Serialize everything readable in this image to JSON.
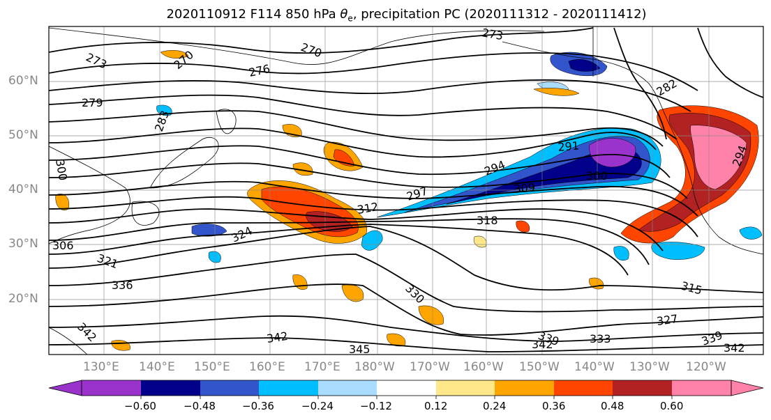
{
  "title": {
    "prefix": "2020110912 F114 850 hPa ",
    "symbol": "θ",
    "subscript": "e",
    "suffix": ", precipitation PC (2020111312 - 2020111412)"
  },
  "latitude_labels": [
    "60°N",
    "50°N",
    "40°N",
    "30°N",
    "20°N"
  ],
  "longitude_labels": [
    "130°E",
    "140°E",
    "150°E",
    "160°E",
    "170°E",
    "180°W",
    "170°W",
    "160°W",
    "150°W",
    "140°W",
    "130°W",
    "120°W"
  ],
  "contour_labels": [
    "273",
    "270",
    "276",
    "273",
    "279",
    "270",
    "283",
    "282",
    "291",
    "294",
    "294",
    "297",
    "309",
    "300",
    "300",
    "312",
    "318",
    "306",
    "321",
    "324",
    "336",
    "330",
    "315",
    "327",
    "342",
    "342",
    "339",
    "333",
    "342",
    "345",
    "339",
    "342"
  ],
  "colorbar": {
    "colors": [
      "#9933cc",
      "#00008b",
      "#3355cc",
      "#00bfff",
      "#aadcff",
      "#ffffff",
      "#ffe88a",
      "#ffa500",
      "#ff4500",
      "#b22222",
      "#ff82a8"
    ],
    "tick_labels": [
      "−0.60",
      "−0.48",
      "−0.36",
      "−0.24",
      "−0.12",
      "0.12",
      "0.24",
      "0.36",
      "0.48",
      "0.60"
    ],
    "levels": [
      -0.6,
      -0.48,
      -0.36,
      -0.24,
      -0.12,
      0.12,
      0.24,
      0.36,
      0.48,
      0.6
    ]
  }
}
